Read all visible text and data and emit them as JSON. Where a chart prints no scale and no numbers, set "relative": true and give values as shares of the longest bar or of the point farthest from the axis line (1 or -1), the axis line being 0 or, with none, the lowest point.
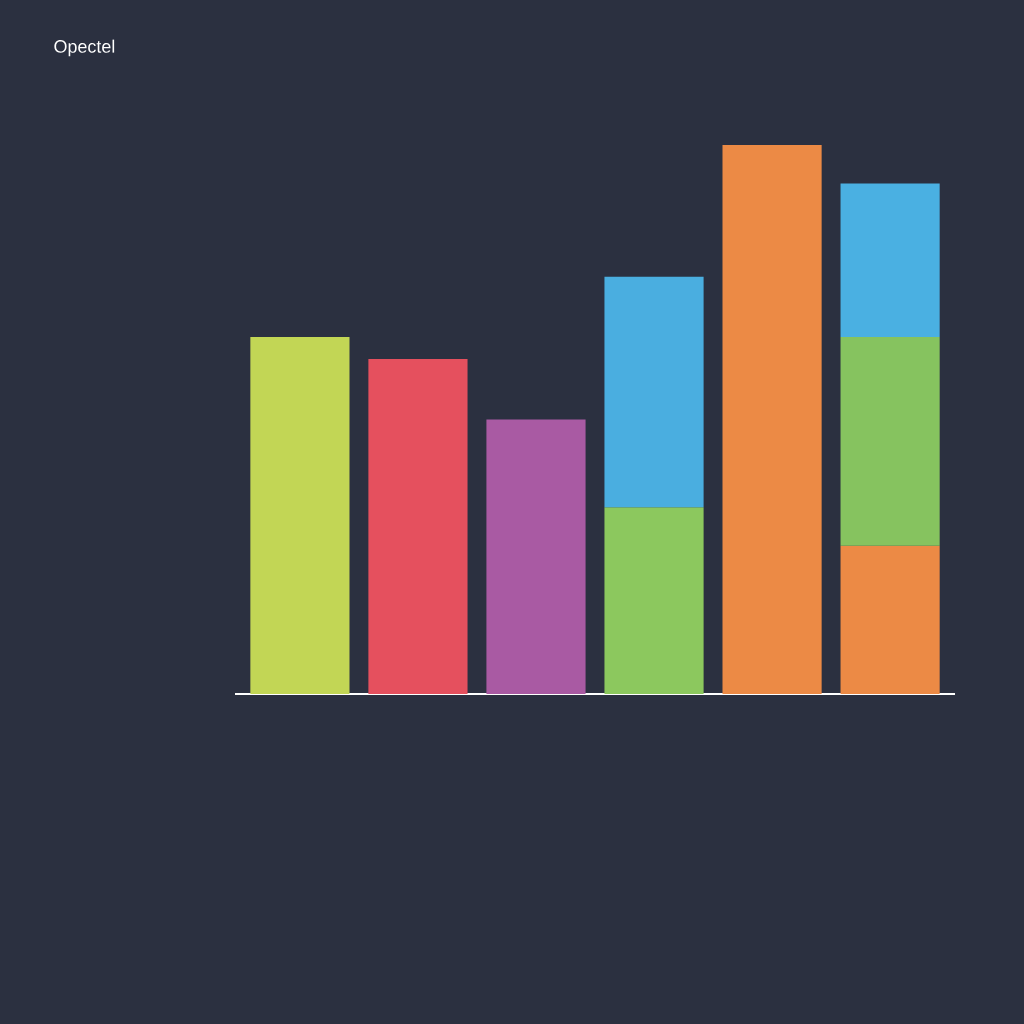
{
  "chart_data": {
    "type": "bar",
    "title": "Opectel",
    "relative": true,
    "stacked": true,
    "categories": [
      null,
      null,
      null,
      null,
      null,
      null
    ],
    "series": [
      {
        "values": [
          0.65,
          0.61,
          0.5,
          0.34,
          1.0,
          0.27
        ],
        "colors": [
          "#c2d655",
          "#e5505e",
          "#a95aa3",
          "#8cc85e",
          "#ec8a45",
          "#ec8a45"
        ]
      },
      {
        "values": [
          null,
          null,
          null,
          0.42,
          null,
          0.38
        ],
        "colors": [
          null,
          null,
          null,
          "#4aaee0",
          null,
          "#86c35f"
        ]
      },
      {
        "values": [
          null,
          null,
          null,
          null,
          null,
          0.28
        ],
        "colors": [
          null,
          null,
          null,
          null,
          null,
          "#4ab0e2"
        ]
      }
    ]
  }
}
